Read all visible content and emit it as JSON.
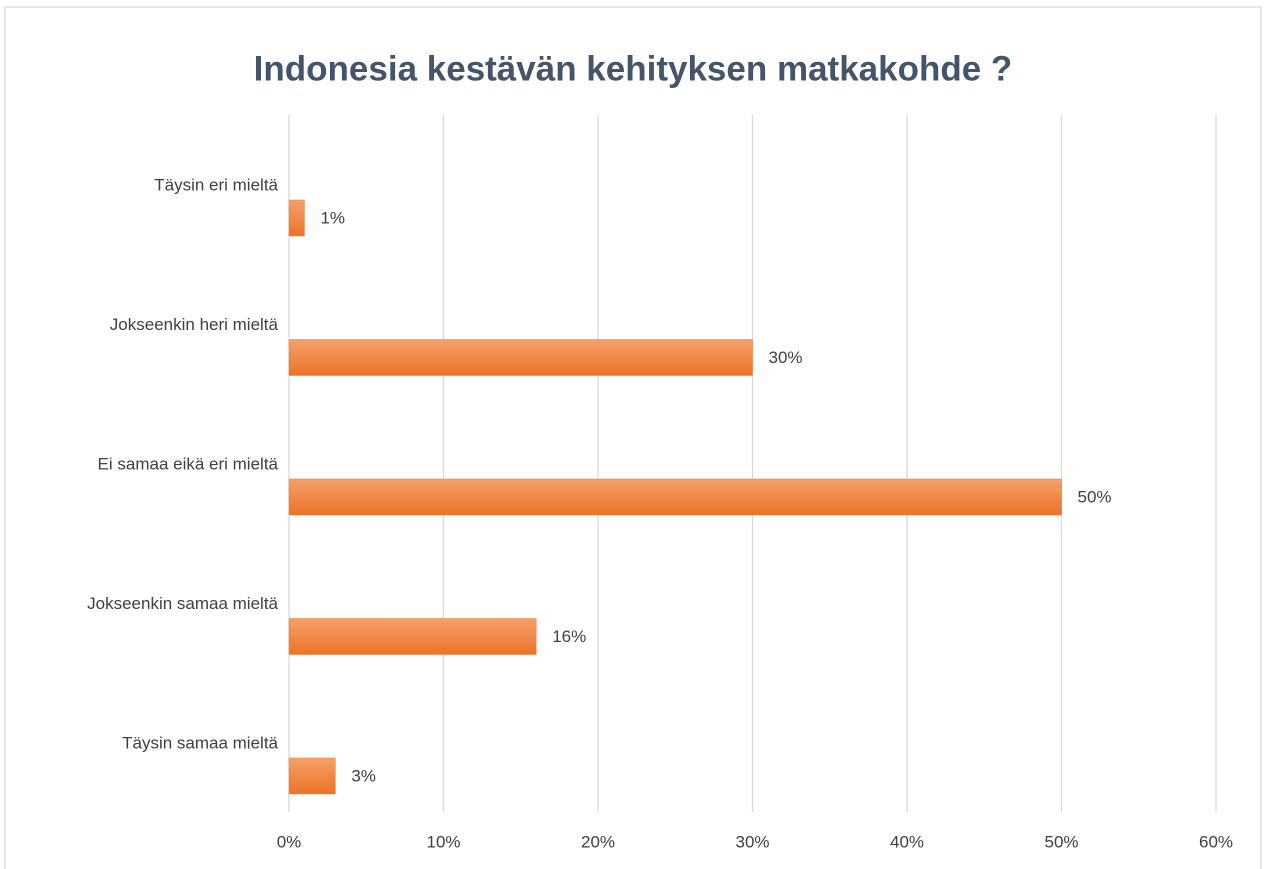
{
  "chart_data": {
    "type": "bar",
    "orientation": "horizontal",
    "title": "Indonesia kestävän kehityksen matkakohde ?",
    "categories": [
      "Täysin eri mieltä",
      "Jokseenkin heri mieltä",
      "Ei samaa eikä eri mieltä",
      "Jokseenkin samaa mieltä",
      "Täysin samaa mieltä"
    ],
    "values": [
      1,
      30,
      50,
      16,
      3
    ],
    "value_labels": [
      "1%",
      "30%",
      "50%",
      "16%",
      "3%"
    ],
    "color": "#ed7d31",
    "xlim": [
      0,
      60
    ],
    "xticks": [
      {
        "value": 0,
        "label": "0%"
      },
      {
        "value": 10,
        "label": "10%"
      },
      {
        "value": 20,
        "label": "20%"
      },
      {
        "value": 30,
        "label": "30%"
      },
      {
        "value": 40,
        "label": "40%"
      },
      {
        "value": 50,
        "label": "50%"
      },
      {
        "value": 60,
        "label": "60%"
      }
    ],
    "grid": true
  }
}
